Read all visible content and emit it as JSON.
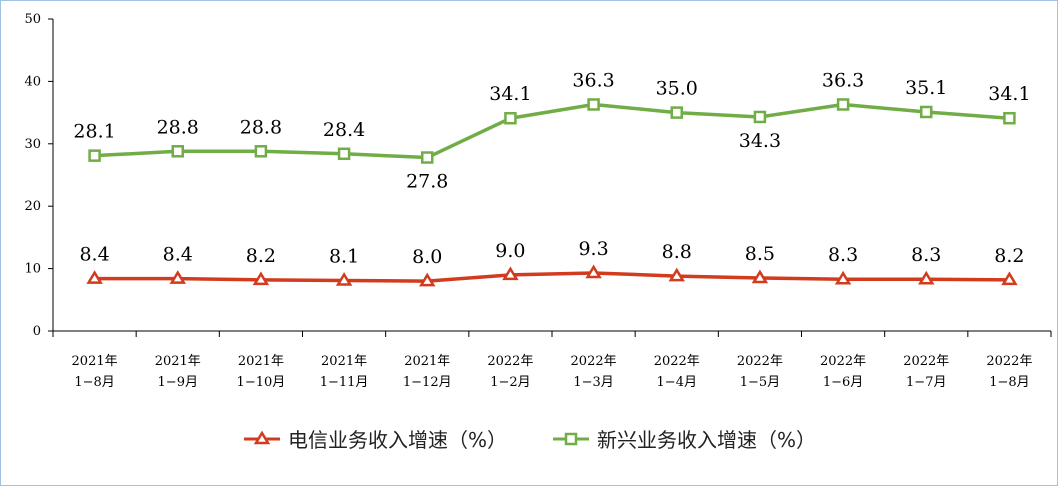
{
  "chart_data": {
    "type": "line",
    "title": "",
    "xlabel": "",
    "ylabel": "",
    "ylim": [
      0,
      50
    ],
    "yticks": [
      0,
      10,
      20,
      30,
      40,
      50
    ],
    "grid": false,
    "legend_position": "bottom",
    "categories": [
      [
        "2021年",
        "1−8月"
      ],
      [
        "2021年",
        "1−9月"
      ],
      [
        "2021年",
        "1−10月"
      ],
      [
        "2021年",
        "1−11月"
      ],
      [
        "2021年",
        "1−12月"
      ],
      [
        "2022年",
        "1−2月"
      ],
      [
        "2022年",
        "1−3月"
      ],
      [
        "2022年",
        "1−4月"
      ],
      [
        "2022年",
        "1−5月"
      ],
      [
        "2022年",
        "1−6月"
      ],
      [
        "2022年",
        "1−7月"
      ],
      [
        "2022年",
        "1−8月"
      ]
    ],
    "series": [
      {
        "name": "电信业务收入增速（%）",
        "marker": "triangle",
        "color": "#d23b1e",
        "values": [
          8.4,
          8.4,
          8.2,
          8.1,
          8.0,
          9.0,
          9.3,
          8.8,
          8.5,
          8.3,
          8.3,
          8.2
        ],
        "labels": [
          "8.4",
          "8.4",
          "8.2",
          "8.1",
          "8.0",
          "9.0",
          "9.3",
          "8.8",
          "8.5",
          "8.3",
          "8.3",
          "8.2"
        ]
      },
      {
        "name": "新兴业务收入增速（%）",
        "marker": "square",
        "color": "#70ad47",
        "values": [
          28.1,
          28.8,
          28.8,
          28.4,
          27.8,
          34.1,
          36.3,
          35.0,
          34.3,
          36.3,
          35.1,
          34.1
        ],
        "labels": [
          "28.1",
          "28.8",
          "28.8",
          "28.4",
          "27.8",
          "34.1",
          "36.3",
          "35.0",
          "34.3",
          "36.3",
          "35.1",
          "34.1"
        ]
      }
    ]
  }
}
